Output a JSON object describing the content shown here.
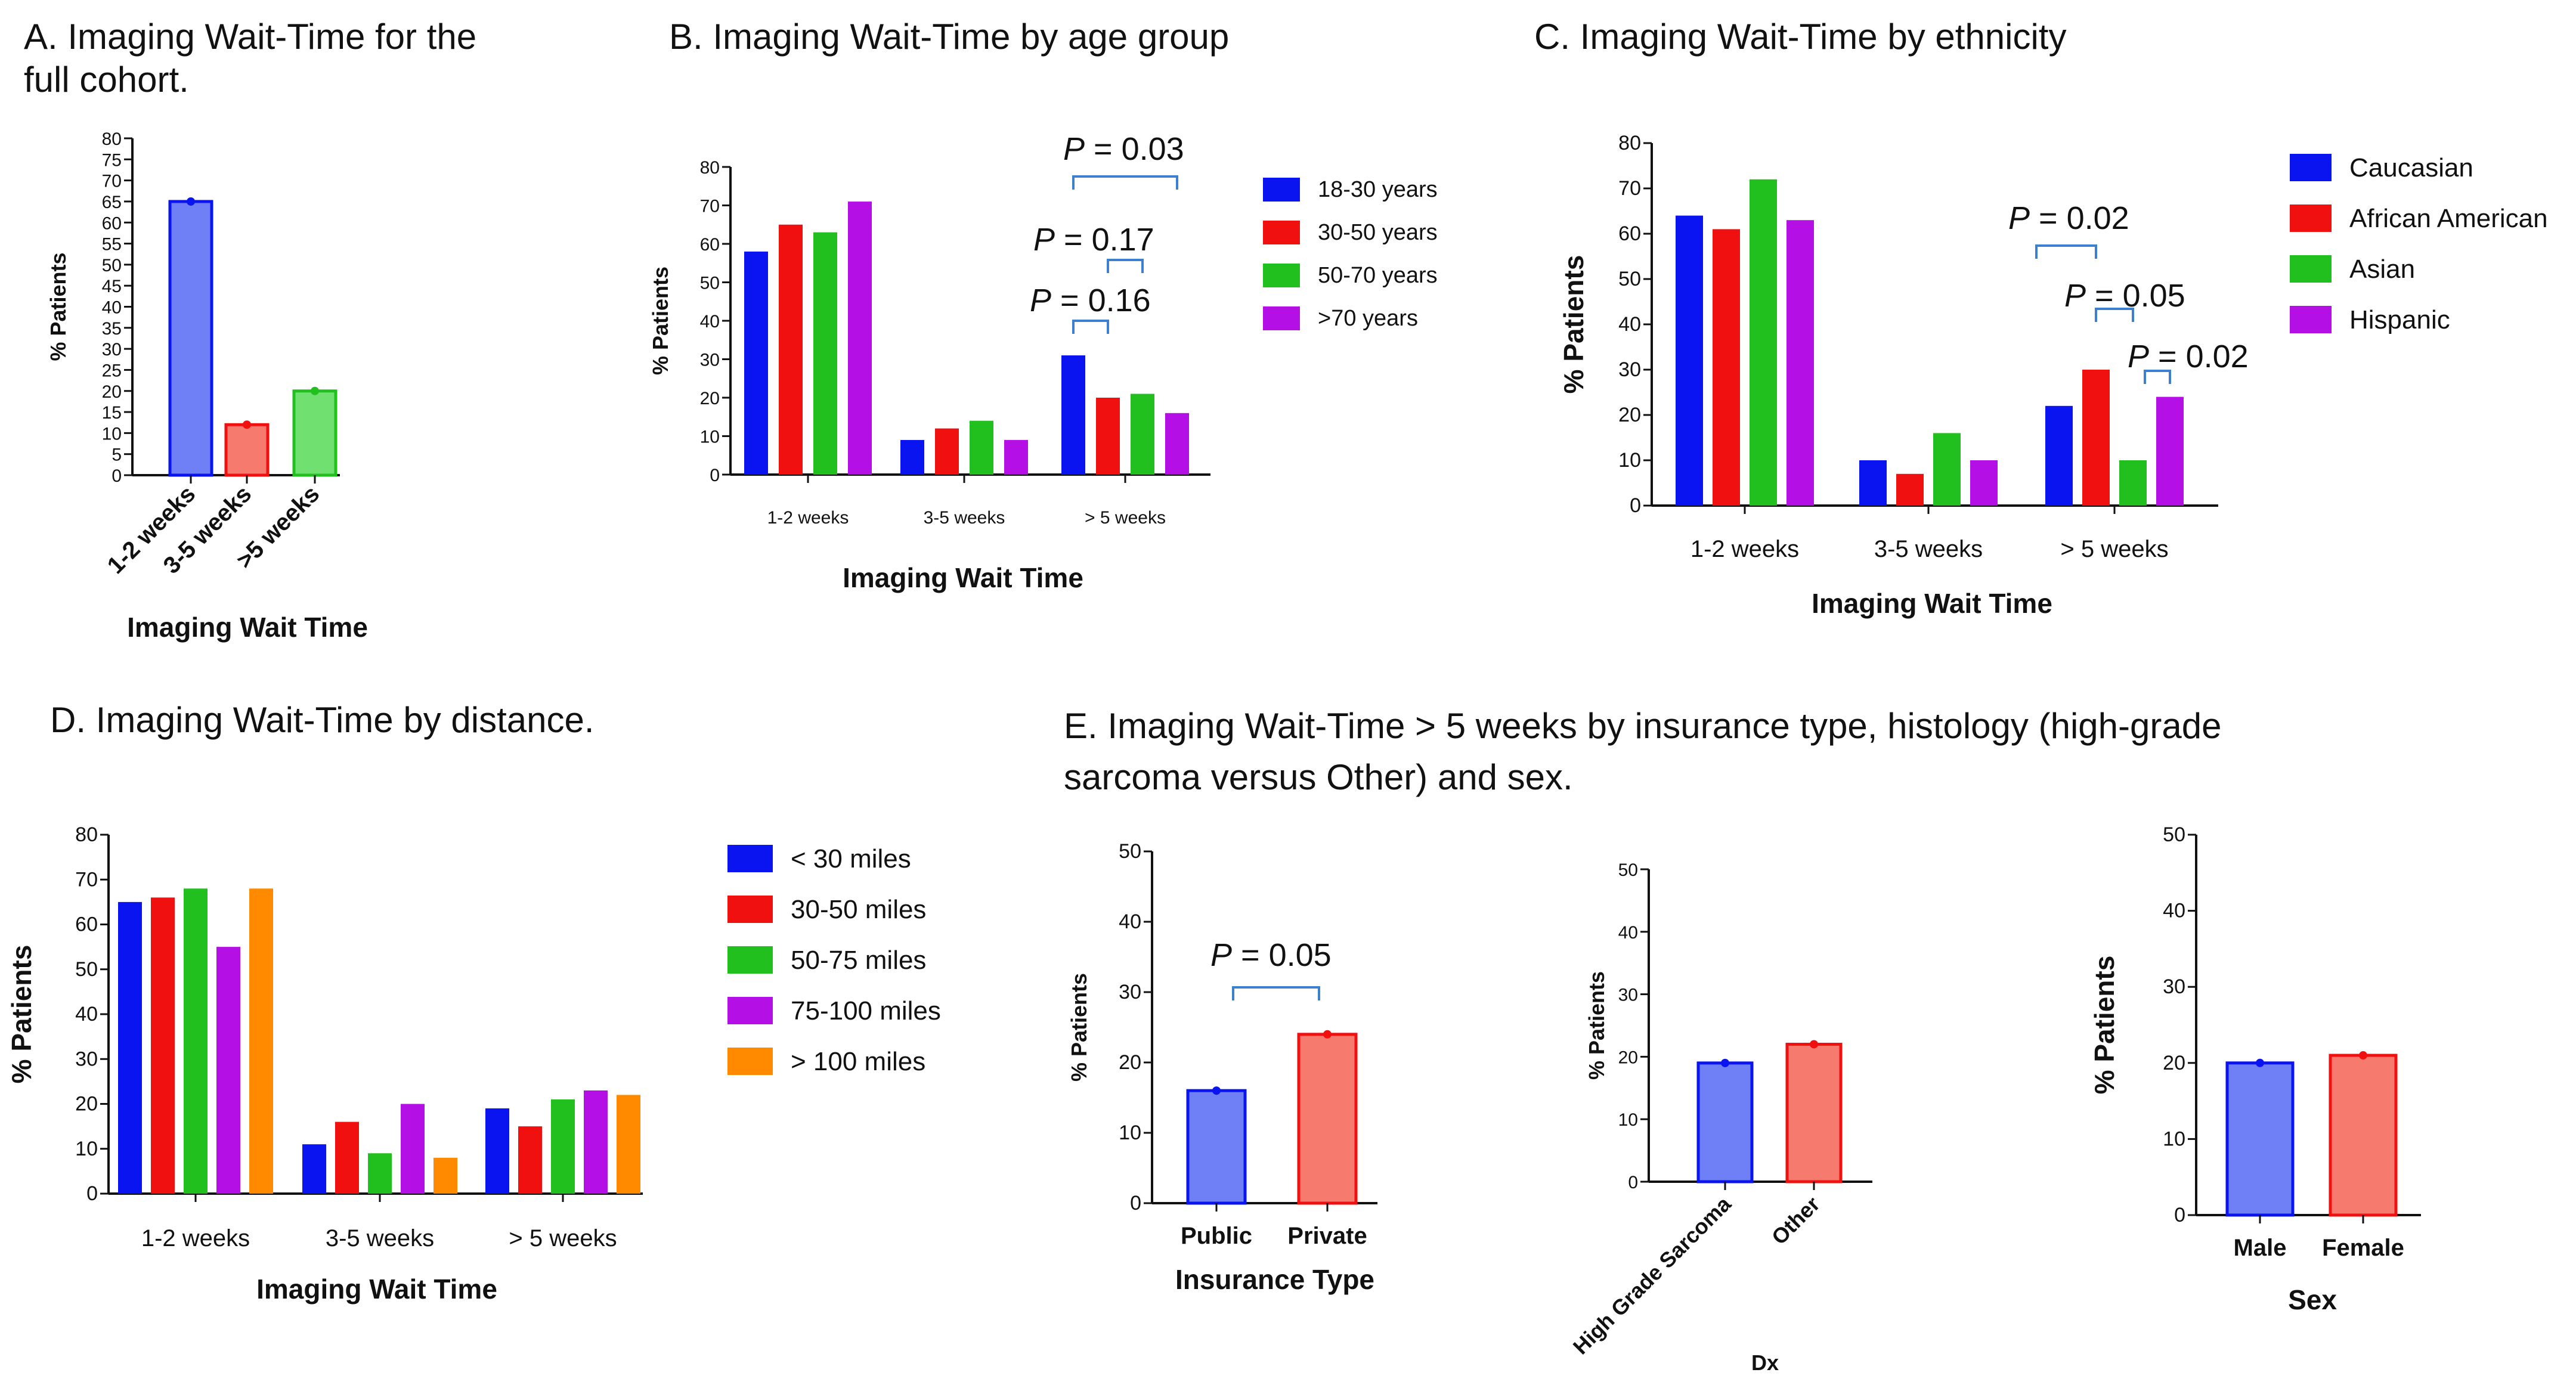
{
  "colors": {
    "blue": "#0a14f0",
    "red": "#f01010",
    "green": "#22c01e",
    "purple": "#b410e6",
    "orange": "#ff8a00",
    "light_blue": "#6f7ff5",
    "light_red": "#f77a6e",
    "light_green": "#70e070",
    "bracket": "#3d7fd0"
  },
  "chart_data": [
    {
      "id": "A",
      "type": "bar",
      "title": "A. Imaging Wait-Time for the full cohort.",
      "title_lines": [
        "A. Imaging Wait-Time for the",
        "full cohort."
      ],
      "categories": [
        "1-2 weeks",
        "3-5 weeks",
        ">5 weeks"
      ],
      "values": [
        65,
        12,
        20
      ],
      "ylabel": "% Patients",
      "xlabel": "Imaging Wait Time",
      "ylim": [
        0,
        80
      ],
      "yticks": [
        0,
        5,
        10,
        15,
        20,
        25,
        30,
        35,
        40,
        45,
        50,
        55,
        60,
        65,
        70,
        75,
        80
      ]
    },
    {
      "id": "B",
      "type": "bar",
      "title": "B. Imaging Wait-Time by age group",
      "categories": [
        "1-2 weeks",
        "3-5 weeks",
        "> 5 weeks"
      ],
      "series": [
        {
          "name": "18-30 years",
          "values": [
            58,
            9,
            31
          ]
        },
        {
          "name": "30-50 years",
          "values": [
            65,
            12,
            20
          ]
        },
        {
          "name": "50-70 years",
          "values": [
            63,
            14,
            21
          ]
        },
        {
          "name": ">70 years",
          "values": [
            71,
            9,
            16
          ]
        }
      ],
      "ylabel": "% Patients",
      "xlabel": "Imaging Wait Time",
      "ylim": [
        0,
        80
      ],
      "yticks": [
        0,
        10,
        20,
        30,
        40,
        50,
        60,
        70,
        80
      ],
      "annotations": [
        {
          "p": "0.03",
          "text": "P = 0.03",
          "between": [
            "18-30 years",
            ">70 years"
          ]
        },
        {
          "p": "0.17",
          "text": "P = 0.17",
          "between": [
            "30-50 years",
            "50-70 years"
          ]
        },
        {
          "p": "0.16",
          "text": "P = 0.16",
          "between": [
            "18-30 years",
            "30-50 years"
          ]
        }
      ]
    },
    {
      "id": "C",
      "type": "bar",
      "title": "C. Imaging Wait-Time by ethnicity",
      "categories": [
        "1-2 weeks",
        "3-5 weeks",
        "> 5 weeks"
      ],
      "series": [
        {
          "name": "Caucasian",
          "values": [
            64,
            10,
            22
          ]
        },
        {
          "name": "African American",
          "values": [
            61,
            7,
            30
          ]
        },
        {
          "name": "Asian",
          "values": [
            72,
            16,
            10
          ]
        },
        {
          "name": "Hispanic",
          "values": [
            63,
            10,
            24
          ]
        }
      ],
      "ylabel": "% Patients",
      "xlabel": "Imaging Wait Time",
      "ylim": [
        0,
        80
      ],
      "yticks": [
        0,
        10,
        20,
        30,
        40,
        50,
        60,
        70,
        80
      ],
      "annotations": [
        {
          "p": "0.02",
          "text": "P = 0.02",
          "between": [
            "Caucasian",
            "African American"
          ]
        },
        {
          "p": "0.05",
          "text": "P = 0.05",
          "between": [
            "African American",
            "Asian"
          ]
        },
        {
          "p": "0.02",
          "text": "P = 0.02",
          "between": [
            "Asian",
            "Hispanic"
          ]
        }
      ]
    },
    {
      "id": "D",
      "type": "bar",
      "title": "D. Imaging Wait-Time by distance.",
      "categories": [
        "1-2 weeks",
        "3-5 weeks",
        "> 5 weeks"
      ],
      "series": [
        {
          "name": "< 30 miles",
          "values": [
            65,
            11,
            19
          ]
        },
        {
          "name": "30-50 miles",
          "values": [
            66,
            16,
            15
          ]
        },
        {
          "name": "50-75 miles",
          "values": [
            68,
            9,
            21
          ]
        },
        {
          "name": "75-100 miles",
          "values": [
            55,
            20,
            23
          ]
        },
        {
          "name": "> 100 miles",
          "values": [
            68,
            8,
            22
          ]
        }
      ],
      "ylabel": "% Patients",
      "xlabel": "Imaging Wait Time",
      "ylim": [
        0,
        80
      ],
      "yticks": [
        0,
        10,
        20,
        30,
        40,
        50,
        60,
        70,
        80
      ]
    },
    {
      "id": "E",
      "type": "bar",
      "title": "E. Imaging Wait-Time > 5 weeks by insurance type, histology (high-grade sarcoma versus Other) and sex.",
      "title_lines": [
        "E. Imaging Wait-Time > 5 weeks by insurance type, histology (high-grade",
        "sarcoma versus Other) and sex."
      ],
      "subplots": [
        {
          "categories": [
            "Public",
            "Private"
          ],
          "values": [
            16,
            24
          ],
          "ylabel": "% Patients",
          "xlabel": "Insurance Type",
          "ylim": [
            0,
            50
          ],
          "yticks": [
            0,
            10,
            20,
            30,
            40,
            50
          ],
          "annotation": {
            "p": "0.05",
            "text": "P = 0.05",
            "between": [
              "Public",
              "Private"
            ]
          }
        },
        {
          "categories": [
            "High Grade Sarcoma",
            "Other"
          ],
          "values": [
            19,
            22
          ],
          "ylabel": "% Patients",
          "xlabel": "Dx",
          "ylim": [
            0,
            50
          ],
          "yticks": [
            0,
            10,
            20,
            30,
            40,
            50
          ]
        },
        {
          "categories": [
            "Male",
            "Female"
          ],
          "values": [
            20,
            21
          ],
          "ylabel": "% Patients",
          "xlabel": "Sex",
          "ylim": [
            0,
            50
          ],
          "yticks": [
            0,
            10,
            20,
            30,
            40,
            50
          ]
        }
      ]
    }
  ]
}
